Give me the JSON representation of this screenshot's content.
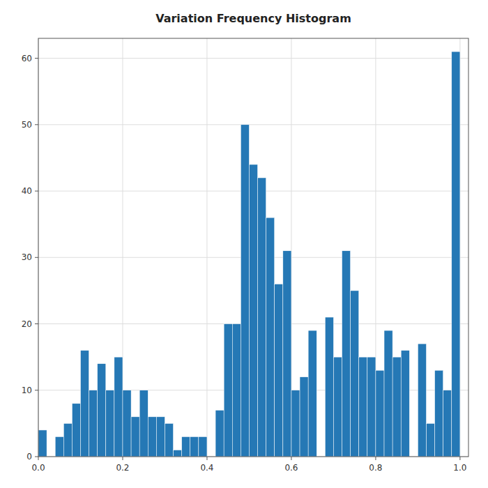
{
  "chart_data": {
    "type": "histogram",
    "title": "Variation Frequency Histogram",
    "bins": [
      0.0,
      0.02,
      0.04,
      0.06,
      0.08,
      0.1,
      0.12,
      0.14,
      0.16,
      0.18,
      0.2,
      0.22,
      0.24,
      0.26,
      0.28,
      0.3,
      0.32,
      0.34,
      0.36,
      0.38,
      0.4,
      0.42,
      0.44,
      0.46,
      0.48,
      0.5,
      0.52,
      0.54,
      0.56,
      0.58,
      0.6,
      0.62,
      0.64,
      0.66,
      0.68,
      0.7,
      0.72,
      0.74,
      0.76,
      0.78,
      0.8,
      0.82,
      0.84,
      0.86,
      0.88,
      0.9,
      0.92,
      0.94,
      0.96,
      0.98,
      1.0
    ],
    "values": [
      4,
      0,
      3,
      5,
      8,
      16,
      10,
      14,
      10,
      15,
      10,
      6,
      10,
      6,
      6,
      5,
      1,
      3,
      3,
      3,
      0,
      7,
      20,
      20,
      50,
      44,
      42,
      36,
      26,
      31,
      10,
      12,
      19,
      0,
      21,
      15,
      31,
      25,
      15,
      15,
      13,
      19,
      15,
      16,
      0,
      17,
      5,
      13,
      10,
      61
    ],
    "color": "#2578b5",
    "xlim": [
      0.0,
      1.02
    ],
    "ylim": [
      0,
      63
    ],
    "xticks": [
      {
        "value": 0.0,
        "label": "0.0"
      },
      {
        "value": 0.2,
        "label": "0.2"
      },
      {
        "value": 0.4,
        "label": "0.4"
      },
      {
        "value": 0.6,
        "label": "0.6"
      },
      {
        "value": 0.8,
        "label": "0.8"
      },
      {
        "value": 1.0,
        "label": "1.0"
      }
    ],
    "yticks": [
      0,
      10,
      20,
      30,
      40,
      50,
      60
    ],
    "grid": true
  }
}
